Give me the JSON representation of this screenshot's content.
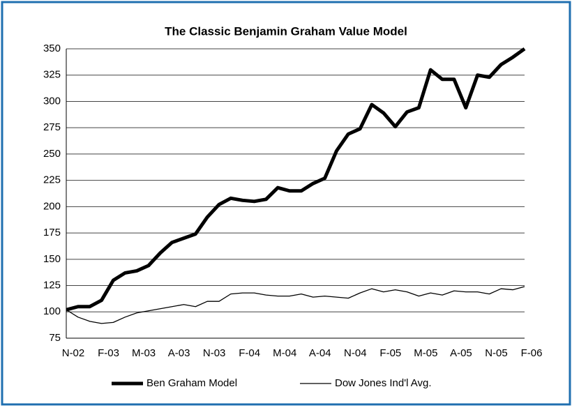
{
  "chart_data": {
    "type": "line",
    "title": "The Classic Benjamin Graham Value Model",
    "categories": [
      "N-02",
      null,
      null,
      "F-03",
      null,
      null,
      "M-03",
      null,
      null,
      "A-03",
      null,
      null,
      "N-03",
      null,
      null,
      "F-04",
      null,
      null,
      "M-04",
      null,
      null,
      "A-04",
      null,
      null,
      "N-04",
      null,
      null,
      "F-05",
      null,
      null,
      "M-05",
      null,
      null,
      "A-05",
      null,
      null,
      "N-05",
      null,
      null,
      "F-06"
    ],
    "series": [
      {
        "name": "Ben Graham Model",
        "color": "#000000",
        "values": [
          102,
          105,
          105,
          111,
          130,
          137,
          139,
          144,
          156,
          166,
          170,
          174,
          190,
          202,
          208,
          206,
          205,
          207,
          218,
          215,
          215,
          222,
          227,
          253,
          269,
          274,
          297,
          289,
          276,
          290,
          294,
          330,
          321,
          321,
          294,
          325,
          323,
          335,
          342,
          350
        ]
      },
      {
        "name": "Dow Jones Ind'l Avg.",
        "color": "#000000",
        "values": [
          102,
          95,
          91,
          89,
          90,
          95,
          99,
          101,
          103,
          105,
          107,
          105,
          110,
          110,
          117,
          118,
          118,
          116,
          115,
          115,
          117,
          114,
          115,
          114,
          113,
          118,
          122,
          119,
          121,
          119,
          115,
          118,
          116,
          120,
          119,
          119,
          117,
          122,
          121,
          124
        ]
      }
    ],
    "ylim": [
      75,
      350
    ],
    "yticks": [
      75,
      100,
      125,
      150,
      175,
      200,
      225,
      250,
      275,
      300,
      325,
      350
    ],
    "grid": true
  }
}
